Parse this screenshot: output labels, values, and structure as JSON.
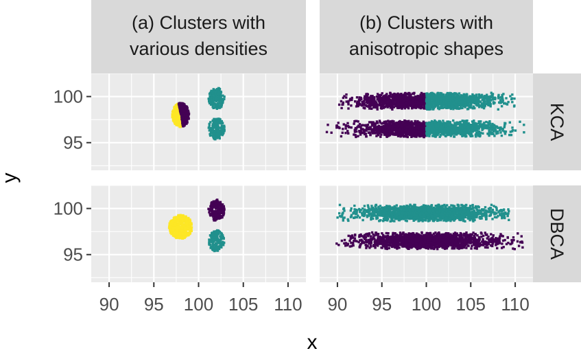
{
  "chart_data": {
    "type": "scatter",
    "facet_columns": [
      {
        "label_line1": "(a) Clusters with",
        "label_line2": "various densities"
      },
      {
        "label_line1": "(b) Clusters with",
        "label_line2": "anisotropic shapes"
      }
    ],
    "facet_rows": [
      {
        "label": "KCA"
      },
      {
        "label": "DBCA"
      }
    ],
    "xlabel": "x",
    "ylabel": "y",
    "xlim": [
      88,
      112
    ],
    "ylim": [
      92,
      102.5
    ],
    "x_ticks": [
      "90",
      "95",
      "100",
      "105",
      "110"
    ],
    "y_ticks": [
      "95",
      "100"
    ],
    "grid": true,
    "colors": {
      "purple": "#440154",
      "teal": "#21908d",
      "yellow": "#fde725"
    },
    "clusters": {
      "kca_density": [
        {
          "shape": "half-disc-left",
          "cx": 98.0,
          "cy": 98.0,
          "rx": 0.95,
          "ry": 1.3,
          "n": 220,
          "color": "yellow"
        },
        {
          "shape": "half-disc-right",
          "cx": 98.0,
          "cy": 98.0,
          "rx": 0.95,
          "ry": 1.3,
          "n": 220,
          "color": "purple"
        },
        {
          "shape": "disc",
          "cx": 102.0,
          "cy": 99.8,
          "rx": 0.9,
          "ry": 1.15,
          "n": 180,
          "color": "teal"
        },
        {
          "shape": "disc",
          "cx": 102.0,
          "cy": 96.5,
          "rx": 0.9,
          "ry": 1.15,
          "n": 180,
          "color": "teal"
        }
      ],
      "dbca_density": [
        {
          "shape": "disc",
          "cx": 98.0,
          "cy": 98.0,
          "rx": 1.3,
          "ry": 1.3,
          "n": 420,
          "color": "yellow"
        },
        {
          "shape": "disc",
          "cx": 102.0,
          "cy": 99.8,
          "rx": 0.9,
          "ry": 1.15,
          "n": 180,
          "color": "purple"
        },
        {
          "shape": "disc",
          "cx": 102.0,
          "cy": 96.5,
          "rx": 0.9,
          "ry": 1.15,
          "n": 180,
          "color": "teal"
        }
      ],
      "kca_aniso": [
        {
          "shape": "band",
          "xmin": 90.0,
          "xmax": 100.0,
          "cy": 99.5,
          "sx": 4.0,
          "sy": 0.45,
          "n": 900,
          "color": "purple"
        },
        {
          "shape": "band",
          "xmin": 100.0,
          "xmax": 110.0,
          "cy": 99.5,
          "sx": 4.0,
          "sy": 0.45,
          "n": 900,
          "color": "teal"
        },
        {
          "shape": "band",
          "xmin": 88.5,
          "xmax": 100.0,
          "cy": 96.5,
          "sx": 4.0,
          "sy": 0.45,
          "n": 900,
          "color": "purple"
        },
        {
          "shape": "band",
          "xmin": 100.0,
          "xmax": 111.0,
          "cy": 96.5,
          "sx": 4.0,
          "sy": 0.45,
          "n": 900,
          "color": "teal"
        }
      ],
      "dbca_aniso": [
        {
          "shape": "band",
          "xmin": 90.0,
          "xmax": 109.5,
          "cy": 99.5,
          "sx": 4.0,
          "sy": 0.45,
          "n": 1600,
          "color": "teal"
        },
        {
          "shape": "band",
          "xmin": 88.5,
          "xmax": 111.0,
          "cy": 96.5,
          "sx": 4.0,
          "sy": 0.45,
          "n": 1600,
          "color": "purple"
        }
      ]
    }
  }
}
